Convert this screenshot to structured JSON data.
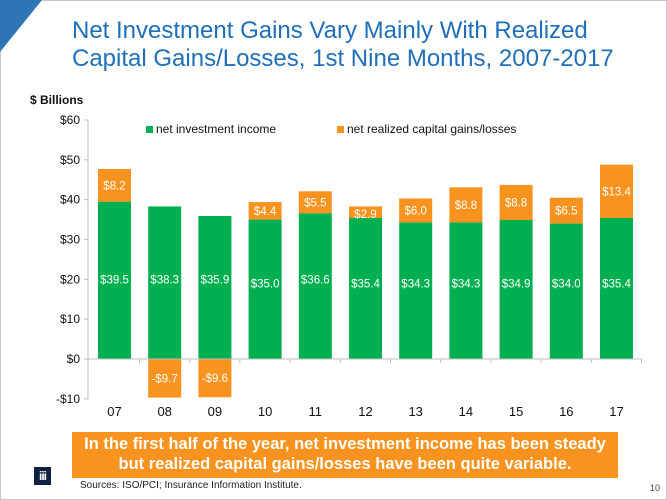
{
  "slide": {
    "title": "Net Investment Gains Vary Mainly With Realized Capital Gains/Losses, 1st Nine Months, 2007-2017",
    "callout": "In the first half of the year, net investment income has been steady but realized capital gains/losses have been quite variable.",
    "source": "Sources: ISO/PCI; Insurance Information Institute.",
    "page_number": "10",
    "logo_text": "iii",
    "colors": {
      "title": "#1f6fb9",
      "corner": "#2e75b6",
      "green": "#00b050",
      "orange": "#f7931e",
      "logo": "#0d2240"
    }
  },
  "chart_data": {
    "type": "bar",
    "stacked": true,
    "title": "Net Investment Gains Vary Mainly With Realized Capital Gains/Losses, 1st Nine Months, 2007-2017",
    "ylabel": "$ Billions",
    "xlabel": "",
    "categories": [
      "07",
      "08",
      "09",
      "10",
      "11",
      "12",
      "13",
      "14",
      "15",
      "16",
      "17"
    ],
    "series": [
      {
        "name": "net investment income",
        "color": "#00b050",
        "values": [
          39.5,
          38.3,
          35.9,
          35.0,
          36.6,
          35.4,
          34.3,
          34.3,
          34.9,
          34.0,
          35.4
        ],
        "labels": [
          "$39.5",
          "$38.3",
          "$35.9",
          "$35.0",
          "$36.6",
          "$35.4",
          "$34.3",
          "$34.3",
          "$34.9",
          "$34.0",
          "$35.4"
        ]
      },
      {
        "name": "net realized capital gains/losses",
        "color": "#f7931e",
        "values": [
          8.2,
          -9.7,
          -9.6,
          4.4,
          5.5,
          2.9,
          6.0,
          8.8,
          8.8,
          6.5,
          13.4
        ],
        "labels": [
          "$8.2",
          "-$9.7",
          "-$9.6",
          "$4.4",
          "$5.5",
          "$2.9",
          "$6.0",
          "$8.8",
          "$8.8",
          "$6.5",
          "$13.4"
        ]
      }
    ],
    "ylim": [
      -10,
      60
    ],
    "yticks": [
      -10,
      0,
      10,
      20,
      30,
      40,
      50,
      60
    ],
    "ytick_labels": [
      "-$10",
      "$0",
      "$10",
      "$20",
      "$30",
      "$40",
      "$50",
      "$60"
    ],
    "grid": false,
    "legend": "top"
  }
}
